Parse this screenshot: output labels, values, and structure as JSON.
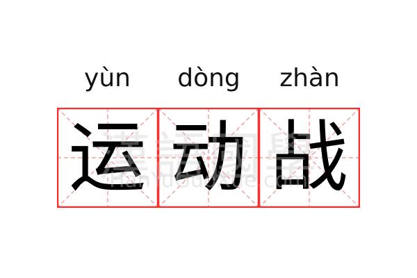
{
  "word": {
    "pinyin": [
      "yùn",
      "dòng",
      "zhàn"
    ],
    "characters": [
      "运",
      "动",
      "战"
    ]
  },
  "watermark": {
    "chinese": "漢語國學",
    "latin": "HanYuGuoXue.com"
  },
  "colors": {
    "grid_border": "#ff2a2a",
    "grid_guides": "#f5a0a0",
    "text": "#000000"
  }
}
